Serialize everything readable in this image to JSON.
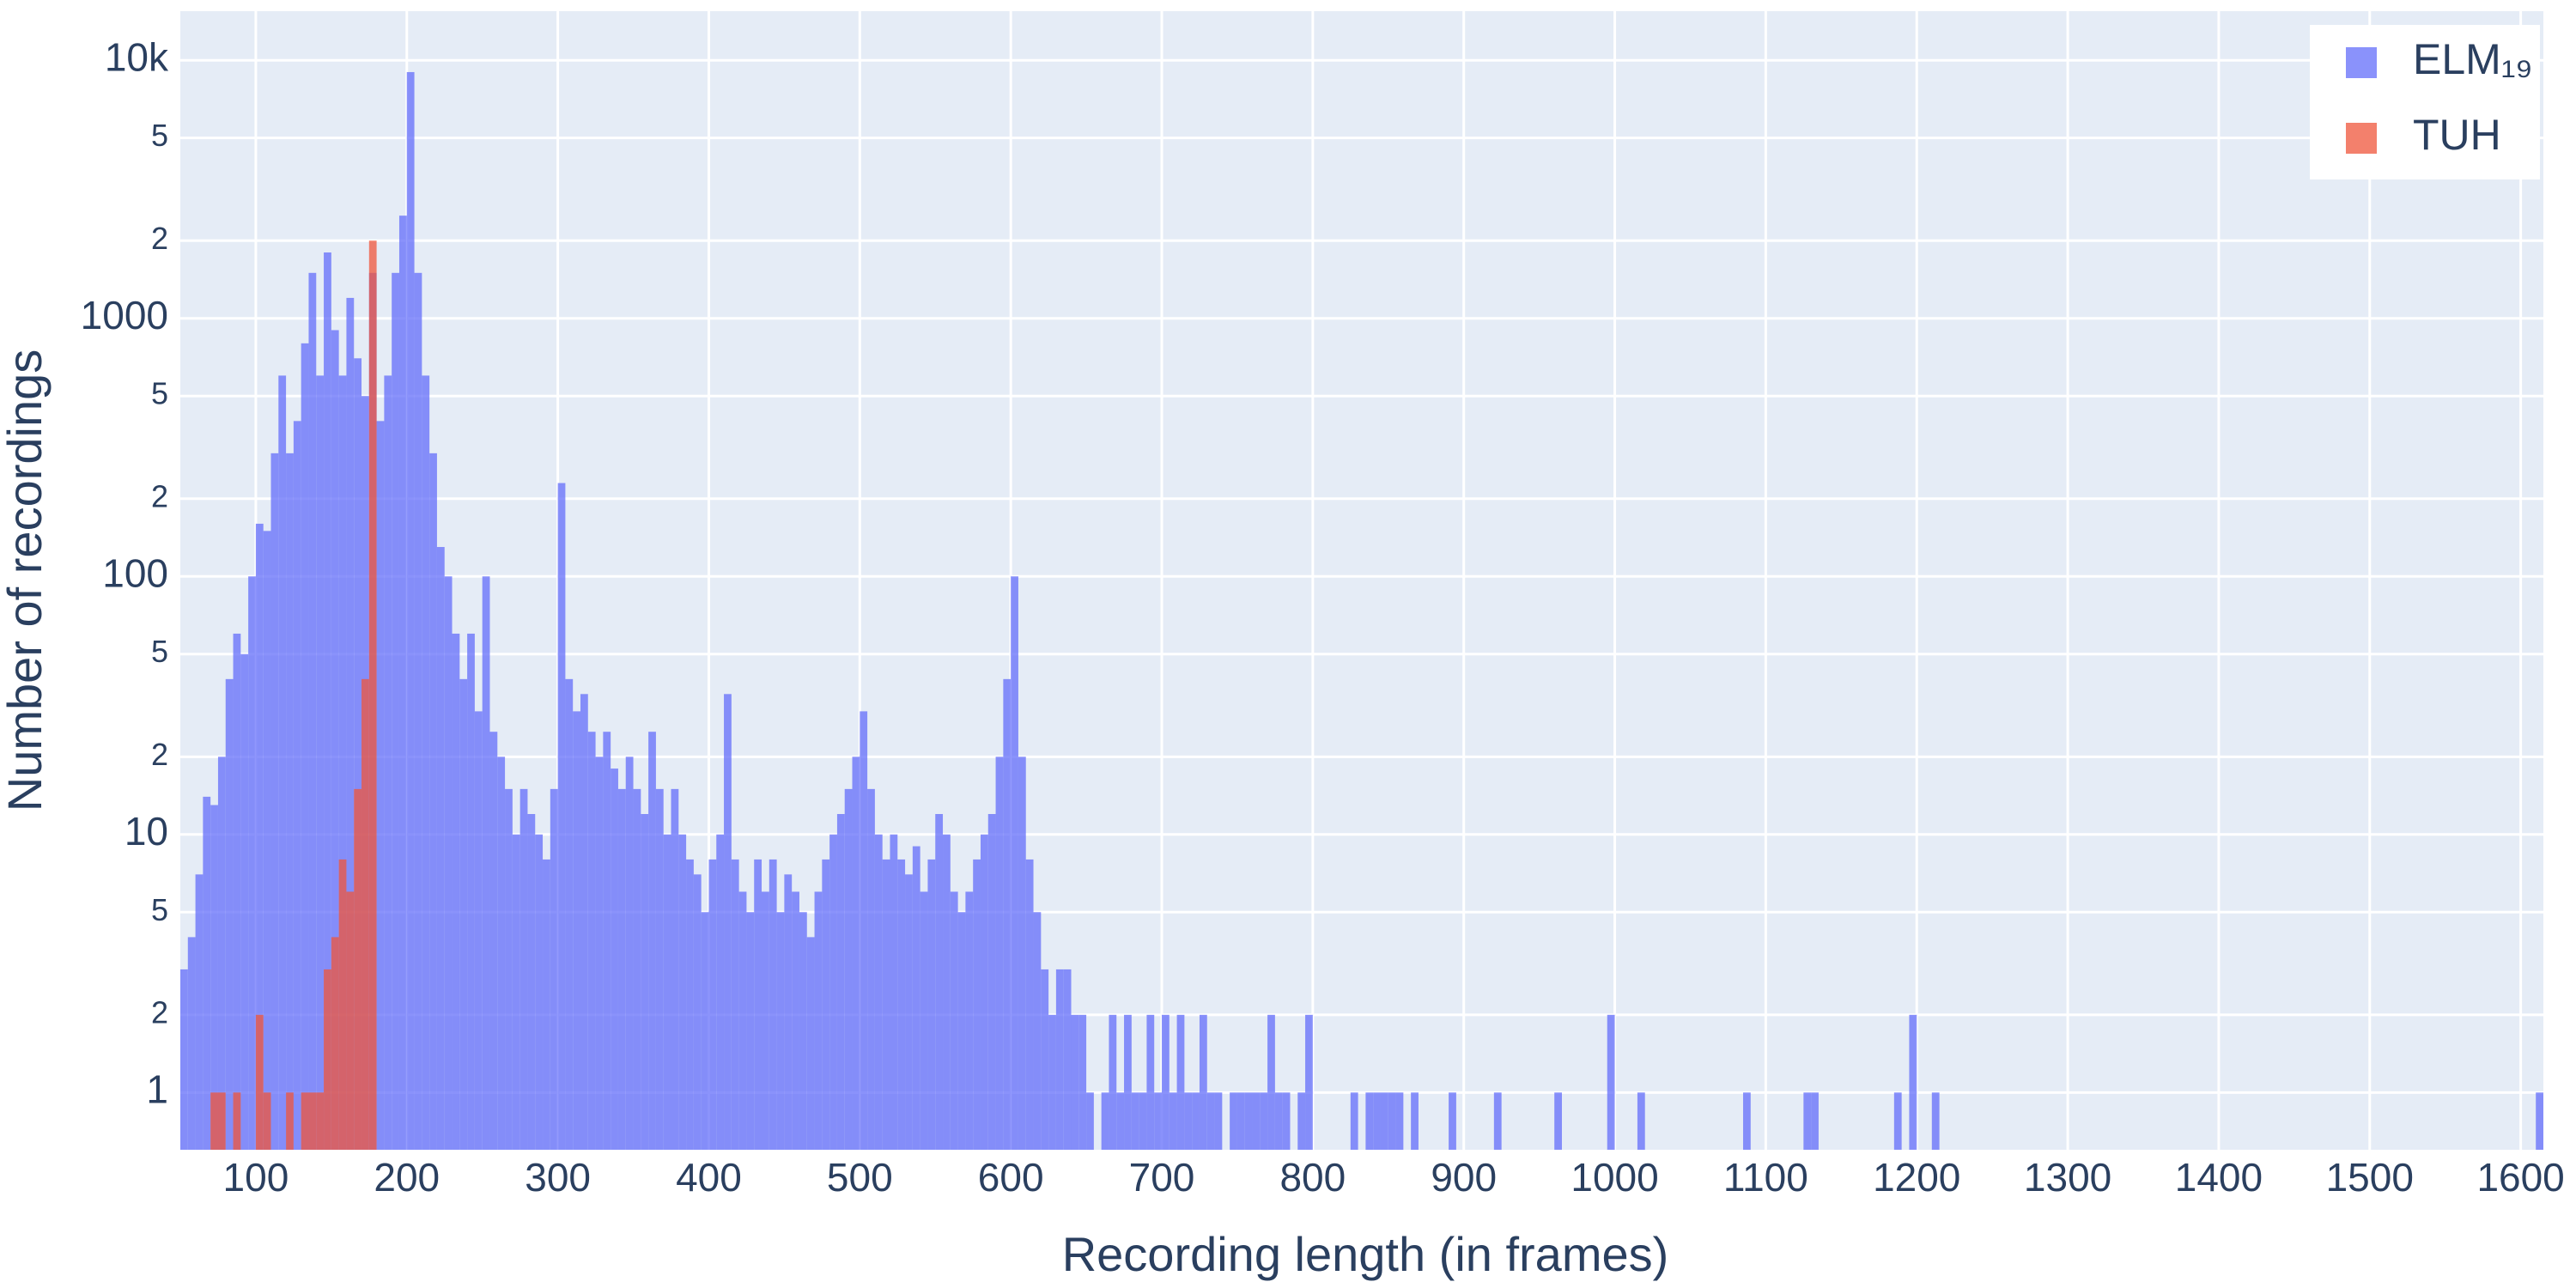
{
  "chart_data": {
    "type": "histogram",
    "x_label": "Recording length (in frames)",
    "y_label": "Number of recordings",
    "log_y": true,
    "grid": true,
    "legend": "top-right",
    "opacity": 0.75,
    "xlim": [
      50,
      1615
    ],
    "ylim": [
      0.6,
      15500
    ],
    "xticks": [
      100,
      200,
      300,
      400,
      500,
      600,
      700,
      800,
      900,
      1000,
      1100,
      1200,
      1300,
      1400,
      1500,
      1600
    ],
    "yticks": [
      1,
      2,
      5,
      10,
      {
        "value": 20,
        "label": "2"
      },
      {
        "value": 50,
        "label": "5"
      },
      100,
      {
        "value": 200,
        "label": "2"
      },
      {
        "value": 500,
        "label": "5"
      },
      1000,
      {
        "value": 2000,
        "label": "2"
      },
      {
        "value": 5000,
        "label": "5"
      },
      {
        "value": 10000,
        "label": "10k"
      }
    ],
    "series": [
      {
        "name": "ELM₁₉",
        "color": "#636efa",
        "bins": [
          50,
          55,
          60,
          65,
          70,
          75,
          80,
          85,
          90,
          95,
          100,
          105,
          110,
          115,
          120,
          125,
          130,
          135,
          140,
          145,
          150,
          155,
          160,
          165,
          170,
          175,
          180,
          185,
          190,
          195,
          200,
          205,
          210,
          215,
          220,
          225,
          230,
          235,
          240,
          245,
          250,
          255,
          260,
          265,
          270,
          275,
          280,
          285,
          290,
          295,
          300,
          305,
          310,
          315,
          320,
          325,
          330,
          335,
          340,
          345,
          350,
          355,
          360,
          365,
          370,
          375,
          380,
          385,
          390,
          395,
          400,
          405,
          410,
          415,
          420,
          425,
          430,
          435,
          440,
          445,
          450,
          455,
          460,
          465,
          470,
          475,
          480,
          485,
          490,
          495,
          500,
          505,
          510,
          515,
          520,
          525,
          530,
          535,
          540,
          545,
          550,
          555,
          560,
          565,
          570,
          575,
          580,
          585,
          590,
          595,
          600,
          605,
          610,
          615,
          620,
          625,
          630,
          635,
          640,
          645,
          650,
          655,
          660,
          665,
          670,
          675,
          680,
          685,
          690,
          695,
          700,
          705,
          710,
          715,
          720,
          725,
          730,
          735,
          740,
          745,
          750,
          755,
          760,
          765,
          770,
          775,
          780,
          785,
          790,
          795,
          800,
          805,
          810,
          815,
          820,
          825,
          830,
          835,
          840,
          845,
          850,
          855,
          860,
          865,
          870,
          875,
          880,
          885,
          890,
          895,
          900,
          905,
          910,
          915,
          920,
          925,
          930,
          935,
          940,
          945,
          950,
          955,
          960,
          965,
          970,
          975,
          980,
          985,
          990,
          995,
          1000,
          1005,
          1010,
          1015,
          1020,
          1025,
          1030,
          1035,
          1040,
          1045,
          1050,
          1055,
          1060,
          1065,
          1070,
          1075,
          1080,
          1085,
          1090,
          1095,
          1100,
          1105,
          1110,
          1115,
          1120,
          1125,
          1130,
          1135,
          1140,
          1145,
          1150,
          1155,
          1160,
          1165,
          1170,
          1175,
          1180,
          1185,
          1190,
          1195,
          1200,
          1205,
          1210,
          1215,
          1220,
          1225,
          1230,
          1235,
          1240,
          1245,
          1250,
          1255,
          1260,
          1265,
          1270,
          1275,
          1280,
          1285,
          1290,
          1295,
          1300,
          1305,
          1310,
          1315,
          1320,
          1325,
          1330,
          1335,
          1340,
          1345,
          1350,
          1355,
          1360,
          1365,
          1370,
          1375,
          1380,
          1385,
          1390,
          1395,
          1400,
          1405,
          1410,
          1415,
          1420,
          1425,
          1430,
          1435,
          1440,
          1445,
          1450,
          1455,
          1460,
          1465,
          1470,
          1475,
          1480,
          1485,
          1490,
          1495,
          1500,
          1505,
          1510,
          1515,
          1520,
          1525,
          1530,
          1535,
          1540,
          1545,
          1550,
          1555,
          1560,
          1565,
          1570,
          1575,
          1580,
          1585,
          1590,
          1595,
          1600,
          1605,
          1610,
          1615
        ],
        "values": [
          3,
          4,
          7,
          14,
          13,
          20,
          40,
          60,
          50,
          100,
          160,
          150,
          300,
          600,
          300,
          400,
          800,
          1500,
          600,
          1800,
          900,
          600,
          1200,
          700,
          500,
          1500,
          400,
          600,
          1500,
          2500,
          9000,
          1500,
          600,
          300,
          130,
          100,
          60,
          40,
          60,
          30,
          100,
          25,
          20,
          15,
          10,
          15,
          12,
          10,
          8,
          15,
          230,
          40,
          30,
          35,
          25,
          20,
          25,
          18,
          15,
          20,
          15,
          12,
          25,
          15,
          10,
          15,
          10,
          8,
          7,
          5,
          8,
          10,
          35,
          8,
          6,
          5,
          8,
          6,
          8,
          5,
          7,
          6,
          5,
          4,
          6,
          8,
          10,
          12,
          15,
          20,
          30,
          15,
          10,
          8,
          10,
          8,
          7,
          9,
          6,
          8,
          12,
          10,
          6,
          5,
          6,
          8,
          10,
          12,
          20,
          40,
          100,
          20,
          8,
          5,
          3,
          2,
          3,
          3,
          2,
          2,
          1,
          0,
          1,
          2,
          1,
          2,
          1,
          1,
          2,
          1,
          2,
          1,
          2,
          1,
          1,
          2,
          1,
          1,
          0,
          1,
          1,
          1,
          1,
          1,
          2,
          1,
          1,
          0,
          1,
          2,
          0,
          0,
          0,
          0,
          0,
          1,
          0,
          1,
          1,
          1,
          1,
          1,
          0,
          1,
          0,
          0,
          0,
          0,
          1,
          0,
          0,
          0,
          0,
          0,
          1,
          0,
          0,
          0,
          0,
          0,
          0,
          0,
          1,
          0,
          0,
          0,
          0,
          0,
          0,
          2,
          0,
          0,
          0,
          1,
          0,
          0,
          0,
          0,
          0,
          0,
          0,
          0,
          0,
          0,
          0,
          0,
          0,
          1,
          0,
          0,
          0,
          0,
          0,
          0,
          0,
          1,
          1,
          0,
          0,
          0,
          0,
          0,
          0,
          0,
          0,
          0,
          0,
          1,
          0,
          2,
          0,
          0,
          1,
          0,
          0,
          0,
          0,
          0,
          0,
          0,
          0,
          0,
          0,
          0,
          0,
          0,
          0,
          0,
          0,
          0,
          0,
          0,
          0,
          0,
          0,
          0,
          0,
          0,
          0,
          0,
          0,
          0,
          0,
          0,
          0,
          0,
          0,
          0,
          0,
          0,
          0,
          0,
          0,
          0,
          0,
          0,
          0,
          0,
          0,
          0,
          0,
          0,
          0,
          0,
          0,
          0,
          0,
          0,
          0,
          0,
          0,
          0,
          0,
          0,
          0,
          0,
          0,
          0,
          0,
          0,
          0,
          0,
          0,
          0,
          0,
          0,
          0,
          0,
          0,
          0,
          0,
          0,
          1
        ]
      },
      {
        "name": "TUH",
        "color": "#ef553b",
        "bins": [
          50,
          55,
          60,
          65,
          70,
          75,
          80,
          85,
          90,
          95,
          100,
          105,
          110,
          115,
          120,
          125,
          130,
          135,
          140,
          145,
          150,
          155,
          160,
          165,
          170,
          175,
          180,
          185
        ],
        "values": [
          0,
          0,
          0,
          0,
          1,
          1,
          0,
          1,
          0,
          0,
          2,
          1,
          0,
          0,
          1,
          0,
          1,
          1,
          1,
          3,
          4,
          8,
          6,
          15,
          40,
          2000,
          0
        ]
      }
    ]
  }
}
